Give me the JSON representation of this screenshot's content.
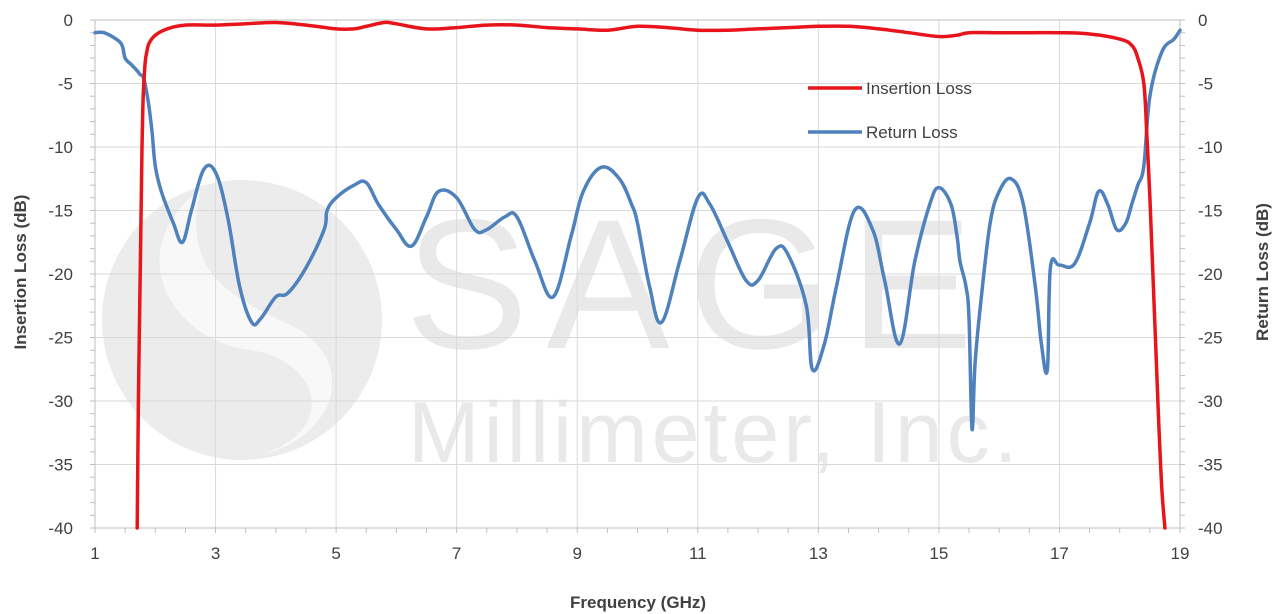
{
  "watermark": {
    "logo_text": "SAGE",
    "logo_subtext": "Millimeter, Inc."
  },
  "chart_data": {
    "type": "line",
    "xlabel": "Frequency (GHz)",
    "ylabel_left": "Insertion Loss (dB)",
    "ylabel_right": "Return Loss (dB)",
    "xlim": [
      1,
      19
    ],
    "ylim": [
      -40,
      0
    ],
    "x_ticks": [
      "1",
      "3",
      "5",
      "7",
      "9",
      "11",
      "13",
      "15",
      "17",
      "19"
    ],
    "y_ticks": [
      "0",
      "-5",
      "-10",
      "-15",
      "-20",
      "-25",
      "-30",
      "-35",
      "-40"
    ],
    "grid": true,
    "legend_position": "top-right",
    "colors": {
      "insertion_loss": "#e8141b",
      "return_loss": "#4f81bd",
      "grid": "#d9d9d9",
      "axis": "#bfbfbf"
    },
    "series": [
      {
        "name": "Insertion Loss",
        "x": [
          1.7,
          1.72,
          1.75,
          1.78,
          1.8,
          1.83,
          1.86,
          1.9,
          2.0,
          2.2,
          2.5,
          3.0,
          3.5,
          4.0,
          4.5,
          5.0,
          5.3,
          5.5,
          5.8,
          6.0,
          6.5,
          7.0,
          7.5,
          8.0,
          8.5,
          9.0,
          9.5,
          10.0,
          10.5,
          11.0,
          11.5,
          12.0,
          12.5,
          13.0,
          13.5,
          14.0,
          14.5,
          15.0,
          15.3,
          15.5,
          16.0,
          16.5,
          17.0,
          17.5,
          18.0,
          18.2,
          18.3,
          18.4,
          18.45,
          18.5,
          18.55,
          18.6,
          18.65,
          18.7,
          18.75
        ],
        "values": [
          -40,
          -30,
          -20,
          -10,
          -6,
          -3.5,
          -2.5,
          -1.8,
          -1.2,
          -0.7,
          -0.4,
          -0.4,
          -0.3,
          -0.2,
          -0.4,
          -0.7,
          -0.7,
          -0.5,
          -0.2,
          -0.3,
          -0.7,
          -0.6,
          -0.4,
          -0.4,
          -0.6,
          -0.7,
          -0.8,
          -0.5,
          -0.6,
          -0.8,
          -0.8,
          -0.7,
          -0.6,
          -0.5,
          -0.5,
          -0.7,
          -1.0,
          -1.3,
          -1.2,
          -1.0,
          -1.0,
          -1.0,
          -1.0,
          -1.1,
          -1.5,
          -2.0,
          -3.0,
          -5.0,
          -9.0,
          -14.0,
          -20.0,
          -26.0,
          -32.0,
          -37.0,
          -40
        ]
      },
      {
        "name": "Return Loss",
        "x": [
          1.0,
          1.15,
          1.35,
          1.45,
          1.5,
          1.6,
          1.7,
          1.75,
          1.8,
          1.85,
          1.9,
          1.95,
          2.0,
          2.1,
          2.3,
          2.45,
          2.6,
          2.8,
          3.0,
          3.2,
          3.4,
          3.6,
          3.75,
          4.0,
          4.2,
          4.5,
          4.8,
          4.85,
          5.0,
          5.3,
          5.5,
          5.7,
          6.0,
          6.25,
          6.5,
          6.7,
          7.0,
          7.3,
          7.5,
          7.8,
          8.0,
          8.3,
          8.6,
          8.9,
          9.1,
          9.4,
          9.7,
          9.9,
          10.0,
          10.2,
          10.4,
          10.7,
          11.0,
          11.2,
          11.5,
          11.8,
          12.0,
          12.3,
          12.5,
          12.8,
          12.9,
          13.1,
          13.3,
          13.6,
          13.9,
          14.1,
          14.35,
          14.6,
          14.85,
          15.0,
          15.2,
          15.3,
          15.35,
          15.45,
          15.5,
          15.55,
          15.6,
          15.7,
          15.85,
          16.0,
          16.2,
          16.4,
          16.6,
          16.7,
          16.8,
          16.85,
          17.0,
          17.25,
          17.5,
          17.65,
          17.8,
          17.95,
          18.1,
          18.2,
          18.3,
          18.4,
          18.5,
          18.7,
          18.9,
          19.0
        ],
        "values": [
          -1.0,
          -1.0,
          -1.5,
          -2.0,
          -3.0,
          -3.5,
          -4.0,
          -4.3,
          -4.5,
          -5.5,
          -7.0,
          -9.0,
          -11.5,
          -13.5,
          -16.0,
          -17.5,
          -15.0,
          -11.8,
          -12.0,
          -15.5,
          -21.0,
          -23.8,
          -23.5,
          -21.8,
          -21.5,
          -19.5,
          -16.5,
          -15.0,
          -14.0,
          -13.0,
          -12.8,
          -14.5,
          -16.5,
          -17.8,
          -15.5,
          -13.5,
          -14.0,
          -16.5,
          -16.5,
          -15.5,
          -15.5,
          -19.0,
          -21.8,
          -17.0,
          -13.5,
          -11.6,
          -12.5,
          -14.5,
          -16.0,
          -21.0,
          -23.8,
          -19.0,
          -14.0,
          -14.5,
          -17.5,
          -20.5,
          -20.5,
          -18.0,
          -18.5,
          -22.5,
          -27.5,
          -25.5,
          -21.0,
          -15.0,
          -16.5,
          -20.5,
          -25.5,
          -19.0,
          -14.5,
          -13.2,
          -14.5,
          -17.0,
          -19.0,
          -21.0,
          -23.5,
          -32.2,
          -27.0,
          -22.0,
          -16.0,
          -13.5,
          -12.5,
          -14.5,
          -21.0,
          -25.5,
          -27.5,
          -19.5,
          -19.3,
          -19.2,
          -16.0,
          -13.5,
          -14.5,
          -16.5,
          -16.0,
          -14.5,
          -13.0,
          -11.5,
          -6.0,
          -2.5,
          -1.5,
          -0.8
        ]
      }
    ]
  }
}
